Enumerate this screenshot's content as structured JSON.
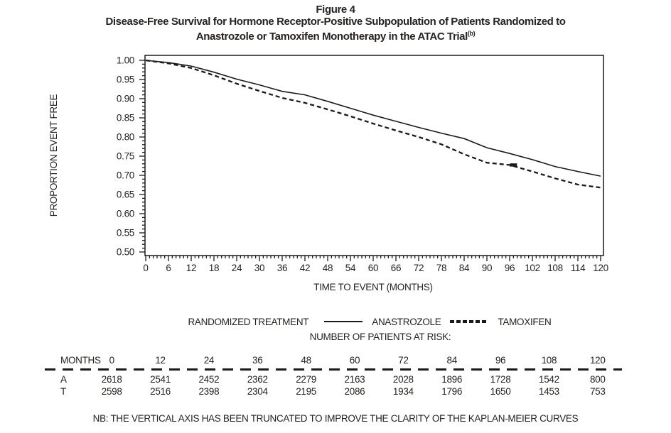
{
  "figure": {
    "label": "Figure 4",
    "title_line1": "Disease-Free Survival for Hormone Receptor-Positive Subpopulation of Patients Randomized to",
    "title_line2": "Anastrozole or Tamoxifen Monotherapy in the ATAC Trial",
    "title_superscript": "(b)"
  },
  "chart_data": {
    "type": "line",
    "title": "Disease-Free Survival for Hormone Receptor-Positive Subpopulation of Patients Randomized to Anastrozole or Tamoxifen Monotherapy in the ATAC Trial(b)",
    "xlabel": "TIME TO EVENT (MONTHS)",
    "ylabel": "PROPORTION EVENT FREE",
    "xlim": [
      0,
      120
    ],
    "ylim": [
      0.5,
      1.0
    ],
    "x_tick_step": 6,
    "x_minor_tick_step": 1,
    "y_tick_step": 0.05,
    "y_minor_tick_step": 0.01,
    "grid": false,
    "legend_title": "RANDOMIZED TREATMENT",
    "legend_position": "below",
    "line_color": "#1a1a1a",
    "x": [
      0,
      6,
      12,
      18,
      24,
      30,
      36,
      42,
      48,
      54,
      60,
      66,
      72,
      78,
      84,
      90,
      96,
      102,
      108,
      114,
      120
    ],
    "series": [
      {
        "name": "ANASTROZOLE",
        "line_style": "solid",
        "values": [
          1.0,
          0.994,
          0.985,
          0.969,
          0.951,
          0.936,
          0.919,
          0.91,
          0.893,
          0.875,
          0.857,
          0.841,
          0.825,
          0.81,
          0.796,
          0.772,
          0.757,
          0.741,
          0.723,
          0.71,
          0.698
        ]
      },
      {
        "name": "TAMOXIFEN",
        "line_style": "dashed",
        "values": [
          1.0,
          0.992,
          0.98,
          0.961,
          0.939,
          0.92,
          0.902,
          0.889,
          0.872,
          0.854,
          0.835,
          0.817,
          0.8,
          0.781,
          0.755,
          0.733,
          0.727,
          0.71,
          0.692,
          0.676,
          0.668
        ]
      }
    ],
    "censor_mark": {
      "series": "TAMOXIFEN",
      "x": 97,
      "y": 0.727
    }
  },
  "risk_table": {
    "title": "NUMBER OF PATIENTS AT RISK:",
    "months_label": "MONTHS",
    "months": [
      "0",
      "12",
      "24",
      "36",
      "48",
      "60",
      "72",
      "84",
      "96",
      "108",
      "120"
    ],
    "rows": [
      {
        "label": "A",
        "values": [
          "2618",
          "2541",
          "2452",
          "2362",
          "2279",
          "2163",
          "2028",
          "1896",
          "1728",
          "1542",
          "800"
        ]
      },
      {
        "label": "T",
        "values": [
          "2598",
          "2516",
          "2398",
          "2304",
          "2195",
          "2086",
          "1934",
          "1796",
          "1650",
          "1453",
          "753"
        ]
      }
    ]
  },
  "note": "NB: THE VERTICAL AXIS HAS BEEN TRUNCATED TO IMPROVE THE CLARITY OF THE KAPLAN-MEIER CURVES"
}
